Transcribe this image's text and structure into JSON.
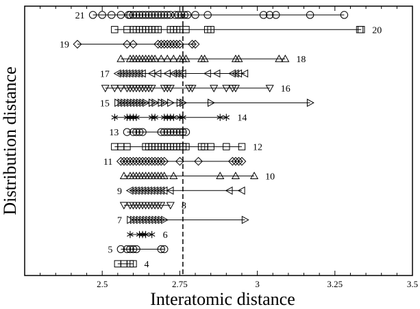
{
  "chart_data": {
    "type": "scatter",
    "title": "",
    "xlabel": "Interatomic distance",
    "ylabel": "Distribution distance",
    "xlim": [
      2.25,
      3.5
    ],
    "ylim": [
      3.2,
      21.6
    ],
    "x_ticks": [
      "2.5",
      "2.75",
      "3",
      "3.25",
      "3.5"
    ],
    "x_tick_values": [
      2.5,
      2.75,
      3.0,
      3.25,
      3.5
    ],
    "grid": false,
    "legend": "none",
    "reference_line": {
      "x": 2.76,
      "style": "dashed"
    },
    "series": [
      {
        "label": "21",
        "marker": "circle",
        "label_side": "left",
        "points": [
          2.47,
          2.5,
          2.53,
          2.56,
          2.585,
          2.59,
          2.6,
          2.61,
          2.62,
          2.63,
          2.64,
          2.65,
          2.66,
          2.67,
          2.68,
          2.69,
          2.7,
          2.71,
          2.72,
          2.735,
          2.745,
          2.755,
          2.765,
          2.775,
          2.8,
          2.84,
          3.02,
          3.04,
          3.06,
          3.17,
          3.28
        ]
      },
      {
        "label": "20",
        "marker": "square",
        "label_side": "right",
        "points": [
          2.54,
          2.58,
          2.6,
          2.61,
          2.62,
          2.63,
          2.64,
          2.65,
          2.66,
          2.67,
          2.68,
          2.72,
          2.73,
          2.74,
          2.75,
          2.77,
          2.84,
          2.85,
          3.33,
          3.335
        ]
      },
      {
        "label": "19",
        "marker": "diamond",
        "label_side": "left",
        "points": [
          2.42,
          2.58,
          2.6,
          2.68,
          2.69,
          2.7,
          2.71,
          2.72,
          2.73,
          2.74,
          2.75,
          2.79,
          2.8
        ]
      },
      {
        "label": "18",
        "marker": "triangle-up",
        "label_side": "right",
        "points": [
          2.56,
          2.59,
          2.6,
          2.61,
          2.62,
          2.63,
          2.64,
          2.65,
          2.66,
          2.67,
          2.69,
          2.71,
          2.73,
          2.75,
          2.76,
          2.77,
          2.82,
          2.83,
          2.93,
          2.94,
          3.07,
          3.09
        ]
      },
      {
        "label": "17",
        "marker": "triangle-left",
        "label_side": "left",
        "points": [
          2.55,
          2.56,
          2.57,
          2.58,
          2.59,
          2.6,
          2.61,
          2.62,
          2.63,
          2.66,
          2.68,
          2.71,
          2.73,
          2.74,
          2.75,
          2.76,
          2.84,
          2.87,
          2.92,
          2.93,
          2.94,
          2.96
        ]
      },
      {
        "label": "16",
        "marker": "triangle-down",
        "label_side": "right",
        "points": [
          2.51,
          2.54,
          2.56,
          2.58,
          2.59,
          2.6,
          2.61,
          2.62,
          2.63,
          2.64,
          2.65,
          2.66,
          2.7,
          2.71,
          2.72,
          2.78,
          2.79,
          2.86,
          2.9,
          2.92,
          2.93,
          3.04
        ]
      },
      {
        "label": "15",
        "marker": "triangle-right",
        "label_side": "left",
        "points": [
          2.55,
          2.56,
          2.57,
          2.58,
          2.59,
          2.6,
          2.61,
          2.62,
          2.63,
          2.64,
          2.66,
          2.67,
          2.69,
          2.7,
          2.72,
          2.75,
          2.76,
          2.85,
          3.17
        ]
      },
      {
        "label": "14",
        "marker": "asterisk",
        "label_side": "right",
        "points": [
          2.54,
          2.58,
          2.59,
          2.6,
          2.61,
          2.66,
          2.67,
          2.7,
          2.71,
          2.72,
          2.73,
          2.75,
          2.76,
          2.88,
          2.9
        ]
      },
      {
        "label": "13",
        "marker": "circle",
        "label_side": "left",
        "points": [
          2.58,
          2.6,
          2.61,
          2.62,
          2.63,
          2.69,
          2.7,
          2.71,
          2.72,
          2.73,
          2.74,
          2.75,
          2.76,
          2.77
        ]
      },
      {
        "label": "12",
        "marker": "square",
        "label_side": "right",
        "points": [
          2.54,
          2.56,
          2.58,
          2.64,
          2.65,
          2.66,
          2.67,
          2.68,
          2.69,
          2.7,
          2.71,
          2.72,
          2.73,
          2.74,
          2.75,
          2.76,
          2.77,
          2.82,
          2.83,
          2.85,
          2.9,
          2.95
        ]
      },
      {
        "label": "11",
        "marker": "diamond",
        "label_side": "left",
        "points": [
          2.56,
          2.57,
          2.58,
          2.59,
          2.6,
          2.61,
          2.62,
          2.63,
          2.64,
          2.65,
          2.66,
          2.67,
          2.68,
          2.69,
          2.7,
          2.75,
          2.81,
          2.92,
          2.93,
          2.94,
          2.95
        ]
      },
      {
        "label": "10",
        "marker": "triangle-up",
        "label_side": "right",
        "points": [
          2.57,
          2.59,
          2.6,
          2.61,
          2.62,
          2.63,
          2.64,
          2.65,
          2.66,
          2.67,
          2.68,
          2.69,
          2.7,
          2.73,
          2.88,
          2.93,
          2.99
        ]
      },
      {
        "label": "9",
        "marker": "triangle-left",
        "label_side": "left",
        "points": [
          2.59,
          2.6,
          2.61,
          2.62,
          2.63,
          2.64,
          2.65,
          2.66,
          2.67,
          2.68,
          2.69,
          2.7,
          2.72,
          2.91,
          2.95
        ]
      },
      {
        "label": "8",
        "marker": "triangle-down",
        "label_side": "right",
        "points": [
          2.57,
          2.59,
          2.6,
          2.61,
          2.62,
          2.63,
          2.64,
          2.65,
          2.66,
          2.67,
          2.68,
          2.69,
          2.72
        ]
      },
      {
        "label": "7",
        "marker": "triangle-right",
        "label_side": "left",
        "points": [
          2.59,
          2.6,
          2.61,
          2.62,
          2.63,
          2.64,
          2.65,
          2.66,
          2.67,
          2.68,
          2.69,
          2.7,
          2.96
        ]
      },
      {
        "label": "6",
        "marker": "asterisk",
        "label_side": "right",
        "points": [
          2.59,
          2.62,
          2.63,
          2.64,
          2.66
        ]
      },
      {
        "label": "5",
        "marker": "circle",
        "label_side": "left",
        "points": [
          2.56,
          2.58,
          2.59,
          2.6,
          2.61,
          2.69,
          2.7
        ]
      },
      {
        "label": "4",
        "marker": "square",
        "label_side": "right",
        "points": [
          2.55,
          2.57,
          2.59,
          2.6
        ]
      }
    ]
  }
}
